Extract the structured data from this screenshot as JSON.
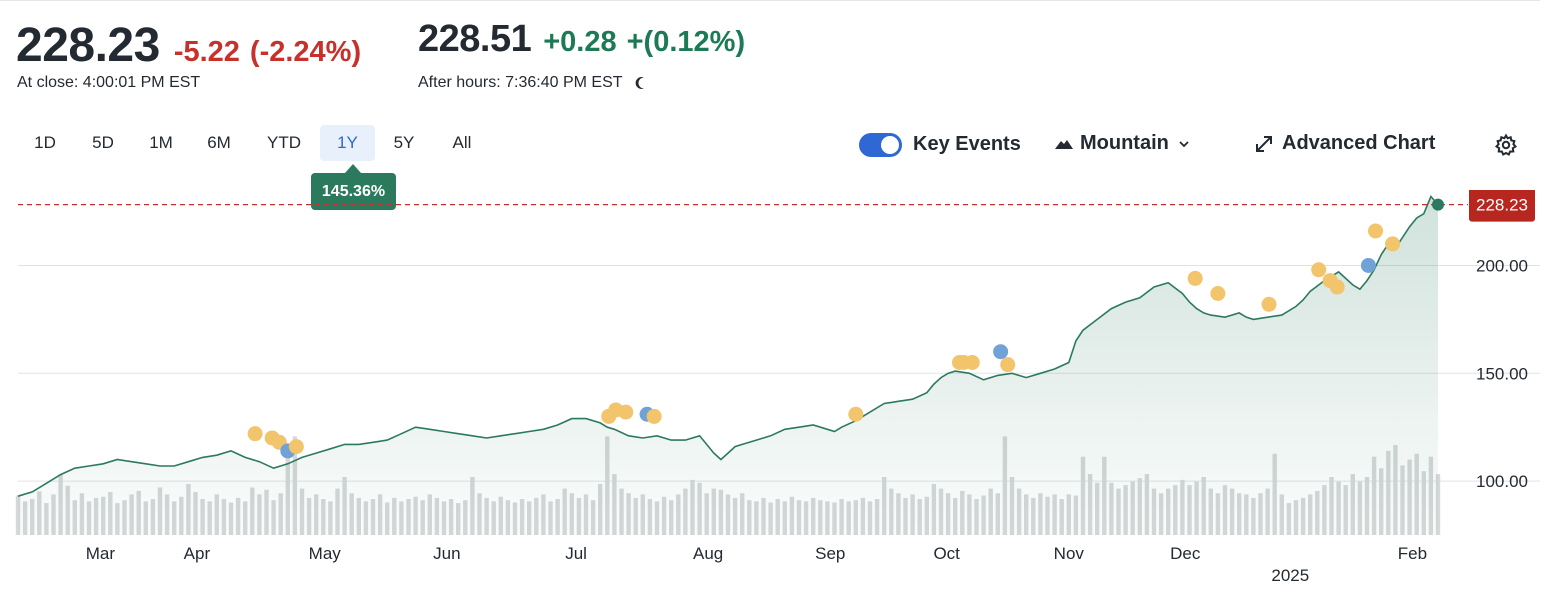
{
  "quote": {
    "close_price": "228.23",
    "close_change": "-5.22",
    "close_change_pct": "(-2.24%)",
    "close_time": "At close: 4:00:01 PM EST",
    "ah_price": "228.51",
    "ah_change": "+0.28",
    "ah_change_pct": "+(0.12%)",
    "ah_time": "After hours: 7:36:40 PM EST"
  },
  "ranges": [
    "1D",
    "5D",
    "1M",
    "6M",
    "YTD",
    "1Y",
    "5Y",
    "All"
  ],
  "selected_range": "1Y",
  "range_return": "145.36%",
  "controls": {
    "key_events_label": "Key Events",
    "key_events_on": true,
    "chart_type_label": "Mountain",
    "advanced_label": "Advanced Chart"
  },
  "icons": [
    "moon-icon",
    "mountain-icon",
    "chevron-down-icon",
    "expand-icon",
    "gear-icon"
  ],
  "colors": {
    "negative": "#c7302b",
    "positive": "#1c7a55",
    "line": "#2c7a5e",
    "active_tab": "#2f67d4",
    "event_gold": "#f2c46b",
    "event_blue": "#6fa3d8",
    "volume": "#d6d8da"
  },
  "chart_data": {
    "type": "area",
    "title": "",
    "xlabel": "",
    "ylabel": "",
    "ylim": [
      75,
      235
    ],
    "yticks": [
      "100.00",
      "150.00",
      "200.00"
    ],
    "last_price_label": "228.23",
    "last_price": 228.23,
    "x_labels": [
      "Mar",
      "Apr",
      "May",
      "Jun",
      "Jul",
      "Aug",
      "Sep",
      "Oct",
      "Nov",
      "Dec",
      "2025",
      "Feb"
    ],
    "x_label_positions": [
      0.058,
      0.126,
      0.216,
      0.302,
      0.393,
      0.486,
      0.572,
      0.654,
      0.74,
      0.822,
      0.896,
      0.982
    ],
    "series": [
      {
        "x": [
          0.0,
          0.01,
          0.02,
          0.03,
          0.04,
          0.05,
          0.06,
          0.07,
          0.08,
          0.09,
          0.1,
          0.11,
          0.12,
          0.13,
          0.14,
          0.15,
          0.16,
          0.17,
          0.18,
          0.19,
          0.2,
          0.21,
          0.22,
          0.23,
          0.24,
          0.25,
          0.26,
          0.27,
          0.28,
          0.29,
          0.3,
          0.31,
          0.32,
          0.33,
          0.34,
          0.35,
          0.36,
          0.37,
          0.38,
          0.39,
          0.4,
          0.41,
          0.415,
          0.42,
          0.43,
          0.44,
          0.45,
          0.46,
          0.47,
          0.48,
          0.49,
          0.495,
          0.5,
          0.505,
          0.51,
          0.52,
          0.53,
          0.54,
          0.55,
          0.56,
          0.57,
          0.575,
          0.58,
          0.59,
          0.6,
          0.61,
          0.62,
          0.63,
          0.64,
          0.645,
          0.65,
          0.655,
          0.66,
          0.67,
          0.68,
          0.69,
          0.7,
          0.71,
          0.72,
          0.73,
          0.74,
          0.745,
          0.75,
          0.76,
          0.77,
          0.78,
          0.79,
          0.8,
          0.81,
          0.82,
          0.825,
          0.83,
          0.835,
          0.84,
          0.85,
          0.86,
          0.865,
          0.87,
          0.88,
          0.89,
          0.9,
          0.905,
          0.91,
          0.92,
          0.93,
          0.94,
          0.945,
          0.95,
          0.955,
          0.96,
          0.965,
          0.97,
          0.98,
          0.985,
          0.99,
          0.995,
          1.0
        ],
        "values": [
          93,
          95,
          99,
          103,
          106,
          107,
          108,
          110,
          109,
          108,
          107,
          107,
          109,
          111,
          112,
          114,
          111,
          109,
          106,
          108,
          111,
          113,
          115,
          117,
          117,
          118,
          119,
          122,
          125,
          124,
          123,
          122,
          121,
          120,
          121,
          122,
          123,
          124,
          126,
          129,
          129,
          127,
          125,
          124,
          121,
          120,
          121,
          119,
          119,
          121,
          113,
          110,
          113,
          116,
          117,
          119,
          121,
          124,
          125,
          126,
          124,
          123,
          125,
          128,
          132,
          136,
          137,
          138,
          141,
          145,
          148,
          150,
          151,
          150,
          147,
          149,
          150,
          148,
          150,
          152,
          155,
          165,
          170,
          175,
          180,
          183,
          185,
          190,
          192,
          187,
          183,
          180,
          178,
          177,
          176,
          178,
          176,
          175,
          176,
          177,
          181,
          184,
          188,
          193,
          197,
          191,
          189,
          193,
          198,
          205,
          210,
          208,
          218,
          222,
          224,
          232,
          228.23
        ]
      }
    ],
    "volume": [
      [
        0.0,
        0.68
      ],
      [
        0.005,
        0.58
      ],
      [
        0.01,
        0.62
      ],
      [
        0.015,
        0.75
      ],
      [
        0.02,
        0.55
      ],
      [
        0.025,
        0.7
      ],
      [
        0.03,
        1.05
      ],
      [
        0.035,
        0.85
      ],
      [
        0.04,
        0.6
      ],
      [
        0.045,
        0.72
      ],
      [
        0.05,
        0.58
      ],
      [
        0.055,
        0.64
      ],
      [
        0.06,
        0.66
      ],
      [
        0.065,
        0.74
      ],
      [
        0.07,
        0.55
      ],
      [
        0.075,
        0.6
      ],
      [
        0.08,
        0.7
      ],
      [
        0.085,
        0.76
      ],
      [
        0.09,
        0.58
      ],
      [
        0.095,
        0.62
      ],
      [
        0.1,
        0.82
      ],
      [
        0.105,
        0.7
      ],
      [
        0.11,
        0.58
      ],
      [
        0.115,
        0.66
      ],
      [
        0.12,
        0.88
      ],
      [
        0.125,
        0.74
      ],
      [
        0.13,
        0.62
      ],
      [
        0.135,
        0.58
      ],
      [
        0.14,
        0.7
      ],
      [
        0.145,
        0.62
      ],
      [
        0.15,
        0.56
      ],
      [
        0.155,
        0.64
      ],
      [
        0.16,
        0.58
      ],
      [
        0.165,
        0.82
      ],
      [
        0.17,
        0.7
      ],
      [
        0.175,
        0.78
      ],
      [
        0.18,
        0.6
      ],
      [
        0.185,
        0.72
      ],
      [
        0.19,
        1.4
      ],
      [
        0.195,
        1.7
      ],
      [
        0.2,
        0.8
      ],
      [
        0.205,
        0.64
      ],
      [
        0.21,
        0.7
      ],
      [
        0.215,
        0.62
      ],
      [
        0.22,
        0.58
      ],
      [
        0.225,
        0.8
      ],
      [
        0.23,
        1.0
      ],
      [
        0.235,
        0.72
      ],
      [
        0.24,
        0.64
      ],
      [
        0.245,
        0.58
      ],
      [
        0.25,
        0.62
      ],
      [
        0.255,
        0.7
      ],
      [
        0.26,
        0.56
      ],
      [
        0.265,
        0.64
      ],
      [
        0.27,
        0.58
      ],
      [
        0.275,
        0.62
      ],
      [
        0.28,
        0.66
      ],
      [
        0.285,
        0.6
      ],
      [
        0.29,
        0.7
      ],
      [
        0.295,
        0.64
      ],
      [
        0.3,
        0.58
      ],
      [
        0.305,
        0.62
      ],
      [
        0.31,
        0.55
      ],
      [
        0.315,
        0.6
      ],
      [
        0.32,
        1.0
      ],
      [
        0.325,
        0.72
      ],
      [
        0.33,
        0.64
      ],
      [
        0.335,
        0.58
      ],
      [
        0.34,
        0.66
      ],
      [
        0.345,
        0.6
      ],
      [
        0.35,
        0.56
      ],
      [
        0.355,
        0.62
      ],
      [
        0.36,
        0.58
      ],
      [
        0.365,
        0.64
      ],
      [
        0.37,
        0.7
      ],
      [
        0.375,
        0.58
      ],
      [
        0.38,
        0.62
      ],
      [
        0.385,
        0.8
      ],
      [
        0.39,
        0.72
      ],
      [
        0.395,
        0.64
      ],
      [
        0.4,
        0.7
      ],
      [
        0.405,
        0.6
      ],
      [
        0.41,
        0.88
      ],
      [
        0.415,
        1.7
      ],
      [
        0.42,
        1.05
      ],
      [
        0.425,
        0.8
      ],
      [
        0.43,
        0.72
      ],
      [
        0.435,
        0.64
      ],
      [
        0.44,
        0.7
      ],
      [
        0.445,
        0.62
      ],
      [
        0.45,
        0.58
      ],
      [
        0.455,
        0.66
      ],
      [
        0.46,
        0.6
      ],
      [
        0.465,
        0.7
      ],
      [
        0.47,
        0.8
      ],
      [
        0.475,
        0.95
      ],
      [
        0.48,
        0.9
      ],
      [
        0.485,
        0.72
      ],
      [
        0.49,
        0.8
      ],
      [
        0.495,
        0.78
      ],
      [
        0.5,
        0.7
      ],
      [
        0.505,
        0.64
      ],
      [
        0.51,
        0.72
      ],
      [
        0.515,
        0.6
      ],
      [
        0.52,
        0.58
      ],
      [
        0.525,
        0.64
      ],
      [
        0.53,
        0.56
      ],
      [
        0.535,
        0.62
      ],
      [
        0.54,
        0.58
      ],
      [
        0.545,
        0.66
      ],
      [
        0.55,
        0.6
      ],
      [
        0.555,
        0.58
      ],
      [
        0.56,
        0.64
      ],
      [
        0.565,
        0.6
      ],
      [
        0.57,
        0.58
      ],
      [
        0.575,
        0.56
      ],
      [
        0.58,
        0.62
      ],
      [
        0.585,
        0.58
      ],
      [
        0.59,
        0.6
      ],
      [
        0.595,
        0.64
      ],
      [
        0.6,
        0.58
      ],
      [
        0.605,
        0.62
      ],
      [
        0.61,
        1.0
      ],
      [
        0.615,
        0.8
      ],
      [
        0.62,
        0.72
      ],
      [
        0.625,
        0.64
      ],
      [
        0.63,
        0.7
      ],
      [
        0.635,
        0.62
      ],
      [
        0.64,
        0.66
      ],
      [
        0.645,
        0.88
      ],
      [
        0.65,
        0.8
      ],
      [
        0.655,
        0.72
      ],
      [
        0.66,
        0.64
      ],
      [
        0.665,
        0.76
      ],
      [
        0.67,
        0.7
      ],
      [
        0.675,
        0.62
      ],
      [
        0.68,
        0.68
      ],
      [
        0.685,
        0.8
      ],
      [
        0.69,
        0.72
      ],
      [
        0.695,
        1.7
      ],
      [
        0.7,
        1.0
      ],
      [
        0.705,
        0.8
      ],
      [
        0.71,
        0.7
      ],
      [
        0.715,
        0.64
      ],
      [
        0.72,
        0.72
      ],
      [
        0.725,
        0.66
      ],
      [
        0.73,
        0.7
      ],
      [
        0.735,
        0.62
      ],
      [
        0.74,
        0.7
      ],
      [
        0.745,
        0.68
      ],
      [
        0.75,
        1.35
      ],
      [
        0.755,
        1.05
      ],
      [
        0.76,
        0.9
      ],
      [
        0.765,
        1.35
      ],
      [
        0.77,
        0.9
      ],
      [
        0.775,
        0.8
      ],
      [
        0.78,
        0.86
      ],
      [
        0.785,
        0.92
      ],
      [
        0.79,
        0.98
      ],
      [
        0.795,
        1.05
      ],
      [
        0.8,
        0.8
      ],
      [
        0.805,
        0.72
      ],
      [
        0.81,
        0.8
      ],
      [
        0.815,
        0.86
      ],
      [
        0.82,
        0.95
      ],
      [
        0.825,
        0.86
      ],
      [
        0.83,
        0.92
      ],
      [
        0.835,
        1.0
      ],
      [
        0.84,
        0.8
      ],
      [
        0.845,
        0.72
      ],
      [
        0.85,
        0.86
      ],
      [
        0.855,
        0.8
      ],
      [
        0.86,
        0.72
      ],
      [
        0.865,
        0.7
      ],
      [
        0.87,
        0.64
      ],
      [
        0.875,
        0.72
      ],
      [
        0.88,
        0.8
      ],
      [
        0.885,
        1.4
      ],
      [
        0.89,
        0.7
      ],
      [
        0.895,
        0.55
      ],
      [
        0.9,
        0.6
      ],
      [
        0.905,
        0.64
      ],
      [
        0.91,
        0.7
      ],
      [
        0.915,
        0.76
      ],
      [
        0.92,
        0.86
      ],
      [
        0.925,
        1.0
      ],
      [
        0.93,
        0.92
      ],
      [
        0.935,
        0.86
      ],
      [
        0.94,
        1.05
      ],
      [
        0.945,
        0.92
      ],
      [
        0.95,
        1.0
      ],
      [
        0.955,
        1.35
      ],
      [
        0.96,
        1.15
      ],
      [
        0.965,
        1.45
      ],
      [
        0.97,
        1.55
      ],
      [
        0.975,
        1.2
      ],
      [
        0.98,
        1.3
      ],
      [
        0.985,
        1.4
      ],
      [
        0.99,
        1.1
      ],
      [
        0.995,
        1.35
      ],
      [
        1.0,
        1.05
      ]
    ],
    "events": [
      {
        "x": 0.167,
        "y": 122,
        "kind": "gold"
      },
      {
        "x": 0.179,
        "y": 120,
        "kind": "gold"
      },
      {
        "x": 0.184,
        "y": 118,
        "kind": "gold"
      },
      {
        "x": 0.19,
        "y": 114,
        "kind": "blue"
      },
      {
        "x": 0.196,
        "y": 116,
        "kind": "gold"
      },
      {
        "x": 0.416,
        "y": 130,
        "kind": "gold"
      },
      {
        "x": 0.421,
        "y": 133,
        "kind": "gold"
      },
      {
        "x": 0.428,
        "y": 132,
        "kind": "gold"
      },
      {
        "x": 0.443,
        "y": 131,
        "kind": "blue"
      },
      {
        "x": 0.448,
        "y": 130,
        "kind": "gold"
      },
      {
        "x": 0.59,
        "y": 131,
        "kind": "gold"
      },
      {
        "x": 0.663,
        "y": 155,
        "kind": "gold"
      },
      {
        "x": 0.666,
        "y": 155,
        "kind": "gold"
      },
      {
        "x": 0.672,
        "y": 155,
        "kind": "gold"
      },
      {
        "x": 0.692,
        "y": 160,
        "kind": "blue"
      },
      {
        "x": 0.697,
        "y": 154,
        "kind": "gold"
      },
      {
        "x": 0.829,
        "y": 194,
        "kind": "gold"
      },
      {
        "x": 0.845,
        "y": 187,
        "kind": "gold"
      },
      {
        "x": 0.881,
        "y": 182,
        "kind": "gold"
      },
      {
        "x": 0.916,
        "y": 198,
        "kind": "gold"
      },
      {
        "x": 0.924,
        "y": 193,
        "kind": "gold"
      },
      {
        "x": 0.929,
        "y": 190,
        "kind": "gold"
      },
      {
        "x": 0.951,
        "y": 200,
        "kind": "blue"
      },
      {
        "x": 0.956,
        "y": 216,
        "kind": "gold"
      },
      {
        "x": 0.968,
        "y": 210,
        "kind": "gold"
      }
    ]
  }
}
